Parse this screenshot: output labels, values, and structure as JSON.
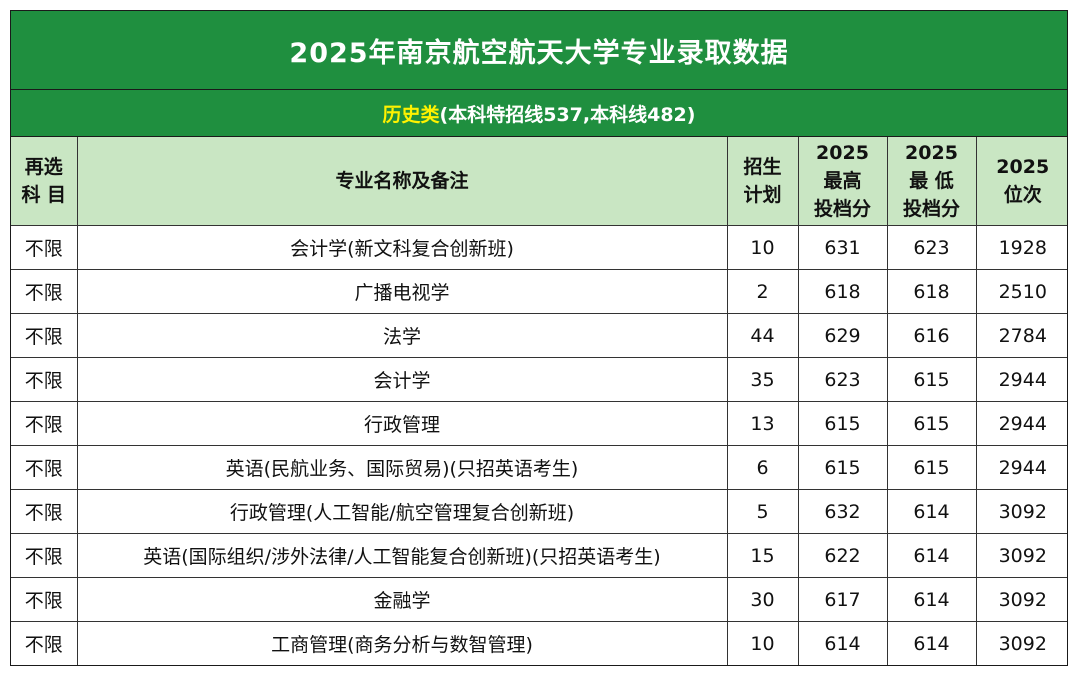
{
  "title": "2025年南京航空航天大学专业录取数据",
  "subtitle": {
    "category": "历史类",
    "detail": "(本科特招线537,本科线482)"
  },
  "headers": {
    "subject": "再选\n科 目",
    "major": "专业名称及备注",
    "plan": "招生\n计划",
    "max": "2025\n最高\n投档分",
    "min": "2025\n最 低\n投档分",
    "rank": "2025\n位次"
  },
  "rows": [
    {
      "subject": "不限",
      "major": "会计学(新文科复合创新班)",
      "plan": "10",
      "max": "631",
      "min": "623",
      "rank": "1928"
    },
    {
      "subject": "不限",
      "major": "广播电视学",
      "plan": "2",
      "max": "618",
      "min": "618",
      "rank": "2510"
    },
    {
      "subject": "不限",
      "major": "法学",
      "plan": "44",
      "max": "629",
      "min": "616",
      "rank": "2784"
    },
    {
      "subject": "不限",
      "major": "会计学",
      "plan": "35",
      "max": "623",
      "min": "615",
      "rank": "2944"
    },
    {
      "subject": "不限",
      "major": "行政管理",
      "plan": "13",
      "max": "615",
      "min": "615",
      "rank": "2944"
    },
    {
      "subject": "不限",
      "major": "英语(民航业务、国际贸易)(只招英语考生)",
      "plan": "6",
      "max": "615",
      "min": "615",
      "rank": "2944"
    },
    {
      "subject": "不限",
      "major": "行政管理(人工智能/航空管理复合创新班)",
      "plan": "5",
      "max": "632",
      "min": "614",
      "rank": "3092"
    },
    {
      "subject": "不限",
      "major": "英语(国际组织/涉外法律/人工智能复合创新班)(只招英语考生)",
      "plan": "15",
      "max": "622",
      "min": "614",
      "rank": "3092"
    },
    {
      "subject": "不限",
      "major": "金融学",
      "plan": "30",
      "max": "617",
      "min": "614",
      "rank": "3092"
    },
    {
      "subject": "不限",
      "major": "工商管理(商务分析与数智管理)",
      "plan": "10",
      "max": "614",
      "min": "614",
      "rank": "3092"
    }
  ],
  "colors": {
    "title_bg": "#1f8f3f",
    "header_bg": "#c9e6c3",
    "accent": "#fff200"
  }
}
